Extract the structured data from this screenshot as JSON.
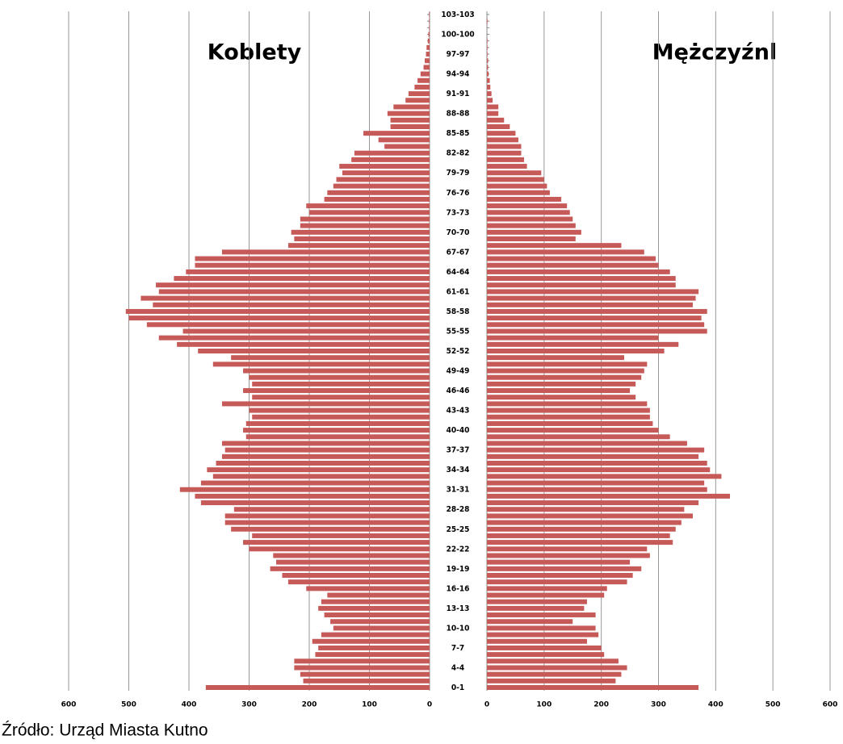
{
  "chart_data": {
    "type": "population-pyramid",
    "source": "Źródło: Urząd Miasta Kutno",
    "categories": [
      "0-1",
      null,
      null,
      "4-4",
      null,
      null,
      "7-7",
      null,
      null,
      "10-10",
      null,
      null,
      "13-13",
      null,
      null,
      "16-16",
      null,
      null,
      "19-19",
      null,
      null,
      "22-22",
      null,
      null,
      "25-25",
      null,
      null,
      "28-28",
      null,
      null,
      "31-31",
      null,
      null,
      "34-34",
      null,
      null,
      "37-37",
      null,
      null,
      "40-40",
      null,
      null,
      "43-43",
      null,
      null,
      "46-46",
      null,
      null,
      "49-49",
      null,
      null,
      "52-52",
      null,
      null,
      "55-55",
      null,
      null,
      "58-58",
      null,
      null,
      "61-61",
      null,
      null,
      "64-64",
      null,
      null,
      "67-67",
      null,
      null,
      "70-70",
      null,
      null,
      "73-73",
      null,
      null,
      "76-76",
      null,
      null,
      "79-79",
      null,
      null,
      "82-82",
      null,
      null,
      "85-85",
      null,
      null,
      "88-88",
      null,
      null,
      "91-91",
      null,
      null,
      "94-94",
      null,
      null,
      "97-97",
      null,
      null,
      "100-100",
      null,
      null,
      "103-103"
    ],
    "series": [
      {
        "name": "Koblety",
        "side": "left",
        "color": "#c65a58",
        "values": [
          372,
          210,
          215,
          225,
          225,
          190,
          185,
          195,
          180,
          160,
          165,
          175,
          185,
          180,
          170,
          205,
          235,
          245,
          265,
          255,
          260,
          300,
          310,
          295,
          330,
          340,
          340,
          325,
          380,
          390,
          415,
          380,
          360,
          370,
          355,
          345,
          340,
          345,
          305,
          310,
          305,
          295,
          300,
          345,
          295,
          310,
          295,
          300,
          310,
          360,
          330,
          385,
          420,
          450,
          410,
          470,
          500,
          505,
          460,
          480,
          450,
          455,
          425,
          405,
          390,
          390,
          345,
          235,
          225,
          230,
          215,
          215,
          200,
          205,
          175,
          170,
          160,
          155,
          145,
          150,
          130,
          125,
          75,
          85,
          110,
          65,
          65,
          70,
          60,
          40,
          35,
          25,
          20,
          15,
          10,
          8,
          6,
          5,
          3,
          2,
          1,
          1,
          1
        ]
      },
      {
        "name": "Mężczyźnl",
        "side": "right",
        "color": "#c65a58",
        "values": [
          370,
          225,
          235,
          245,
          230,
          205,
          200,
          175,
          195,
          190,
          150,
          190,
          170,
          175,
          205,
          210,
          245,
          255,
          270,
          250,
          285,
          280,
          325,
          320,
          330,
          340,
          360,
          345,
          370,
          425,
          385,
          380,
          410,
          390,
          385,
          370,
          380,
          350,
          320,
          300,
          290,
          285,
          285,
          280,
          260,
          250,
          260,
          270,
          275,
          280,
          240,
          310,
          335,
          300,
          385,
          380,
          375,
          385,
          360,
          365,
          370,
          330,
          330,
          320,
          300,
          295,
          275,
          235,
          155,
          165,
          155,
          150,
          145,
          140,
          130,
          110,
          105,
          100,
          95,
          70,
          65,
          60,
          60,
          55,
          50,
          40,
          30,
          20,
          20,
          10,
          8,
          6,
          5,
          3,
          2,
          2,
          1,
          1,
          1,
          0,
          0,
          1,
          0
        ]
      }
    ],
    "xlim": [
      0,
      600
    ],
    "xticks": [
      0,
      100,
      200,
      300,
      400,
      500,
      600
    ],
    "grid": true
  }
}
